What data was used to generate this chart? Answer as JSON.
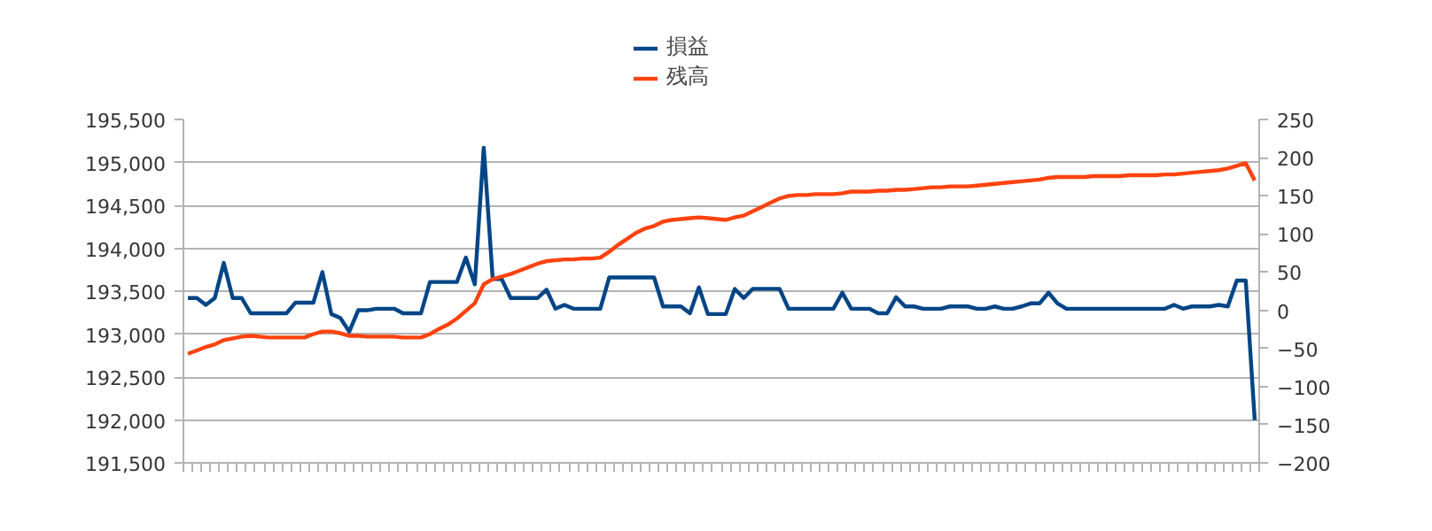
{
  "chart_data": {
    "type": "line",
    "categories": [
      null,
      null,
      null,
      null,
      null,
      null,
      null,
      null,
      null,
      null,
      null,
      null,
      null,
      null,
      null,
      null,
      null,
      null,
      null,
      null,
      null,
      null,
      null,
      null,
      null,
      null,
      null,
      null,
      null,
      null,
      null,
      null,
      null,
      null,
      null,
      null,
      null,
      null,
      null,
      null,
      null,
      null,
      null,
      null,
      null,
      null,
      null,
      null,
      null,
      null,
      null,
      null,
      null,
      null,
      null,
      null,
      null,
      null,
      null,
      null,
      null,
      null,
      null,
      null,
      null,
      null,
      null,
      null,
      null,
      null,
      null,
      null,
      null,
      null,
      null,
      null,
      null,
      null,
      null,
      null,
      null,
      null,
      null,
      null,
      null,
      null,
      null,
      null,
      null,
      null,
      null,
      null,
      null,
      null,
      null,
      null,
      null,
      null,
      null,
      null,
      null,
      null,
      null,
      null,
      null,
      null,
      null,
      null,
      null,
      null,
      null,
      null,
      null,
      null,
      null,
      null,
      null,
      null,
      null,
      null
    ],
    "series": [
      {
        "name": "損益",
        "color": "#004586",
        "axis": "y2",
        "values": [
          16,
          16,
          7,
          16,
          62,
          16,
          16,
          -4,
          -4,
          -4,
          -4,
          -4,
          10,
          10,
          10,
          50,
          -5,
          -10,
          -28,
          0,
          0,
          2,
          2,
          2,
          -4,
          -4,
          -4,
          37,
          37,
          37,
          37,
          69,
          34,
          213,
          41,
          41,
          16,
          16,
          16,
          16,
          27,
          2,
          7,
          2,
          2,
          2,
          2,
          43,
          43,
          43,
          43,
          43,
          43,
          5,
          5,
          5,
          -4,
          30,
          -5,
          -5,
          -5,
          28,
          16,
          28,
          28,
          28,
          28,
          2,
          2,
          2,
          2,
          2,
          2,
          23,
          2,
          2,
          2,
          -4,
          -4,
          17,
          5,
          5,
          2,
          2,
          2,
          5,
          5,
          5,
          2,
          2,
          5,
          2,
          2,
          5,
          9,
          9,
          23,
          9,
          2,
          2,
          2,
          2,
          2,
          2,
          2,
          2,
          2,
          2,
          2,
          2,
          7,
          2,
          5,
          5,
          5,
          7,
          5,
          39,
          39,
          -144
        ]
      },
      {
        "name": "残高",
        "color": "#ff420e",
        "values": [
          192770,
          192810,
          192850,
          192880,
          192930,
          192950,
          192970,
          192980,
          192970,
          192960,
          192960,
          192960,
          192960,
          192960,
          193000,
          193030,
          193030,
          193010,
          192980,
          192980,
          192970,
          192970,
          192970,
          192970,
          192960,
          192960,
          192960,
          193000,
          193060,
          193110,
          193180,
          193270,
          193360,
          193580,
          193640,
          193670,
          193700,
          193740,
          193780,
          193820,
          193850,
          193860,
          193870,
          193870,
          193880,
          193880,
          193890,
          193960,
          194040,
          194110,
          194180,
          194230,
          194260,
          194310,
          194330,
          194340,
          194350,
          194360,
          194350,
          194340,
          194330,
          194360,
          194380,
          194430,
          194480,
          194530,
          194580,
          194610,
          194620,
          194620,
          194630,
          194630,
          194630,
          194640,
          194660,
          194660,
          194660,
          194670,
          194670,
          194680,
          194680,
          194690,
          194700,
          194710,
          194710,
          194720,
          194720,
          194720,
          194730,
          194740,
          194750,
          194760,
          194770,
          194780,
          194790,
          194800,
          194820,
          194830,
          194830,
          194830,
          194830,
          194840,
          194840,
          194840,
          194840,
          194850,
          194850,
          194850,
          194850,
          194860,
          194860,
          194870,
          194880,
          194890,
          194900,
          194910,
          194930,
          194960,
          194990,
          194790
        ]
      }
    ],
    "ylim": [
      191500,
      195500
    ],
    "yticks": [
      {
        "value": 191500,
        "label": "191,500"
      },
      {
        "value": 192000,
        "label": "192,000"
      },
      {
        "value": 192500,
        "label": "192,500"
      },
      {
        "value": 193000,
        "label": "193,000"
      },
      {
        "value": 193500,
        "label": "193,500"
      },
      {
        "value": 194000,
        "label": "194,000"
      },
      {
        "value": 194500,
        "label": "194,500"
      },
      {
        "value": 195000,
        "label": "195,000"
      },
      {
        "value": 195500,
        "label": "195,500"
      }
    ],
    "y2lim": [
      -200,
      250
    ],
    "y2ticks": [
      -200,
      -150,
      -100,
      -50,
      0,
      50,
      100,
      150,
      200,
      250
    ],
    "grid": "y",
    "legend": "top",
    "tick_labels": "y",
    "marker": "none",
    "line_style": "solid"
  }
}
